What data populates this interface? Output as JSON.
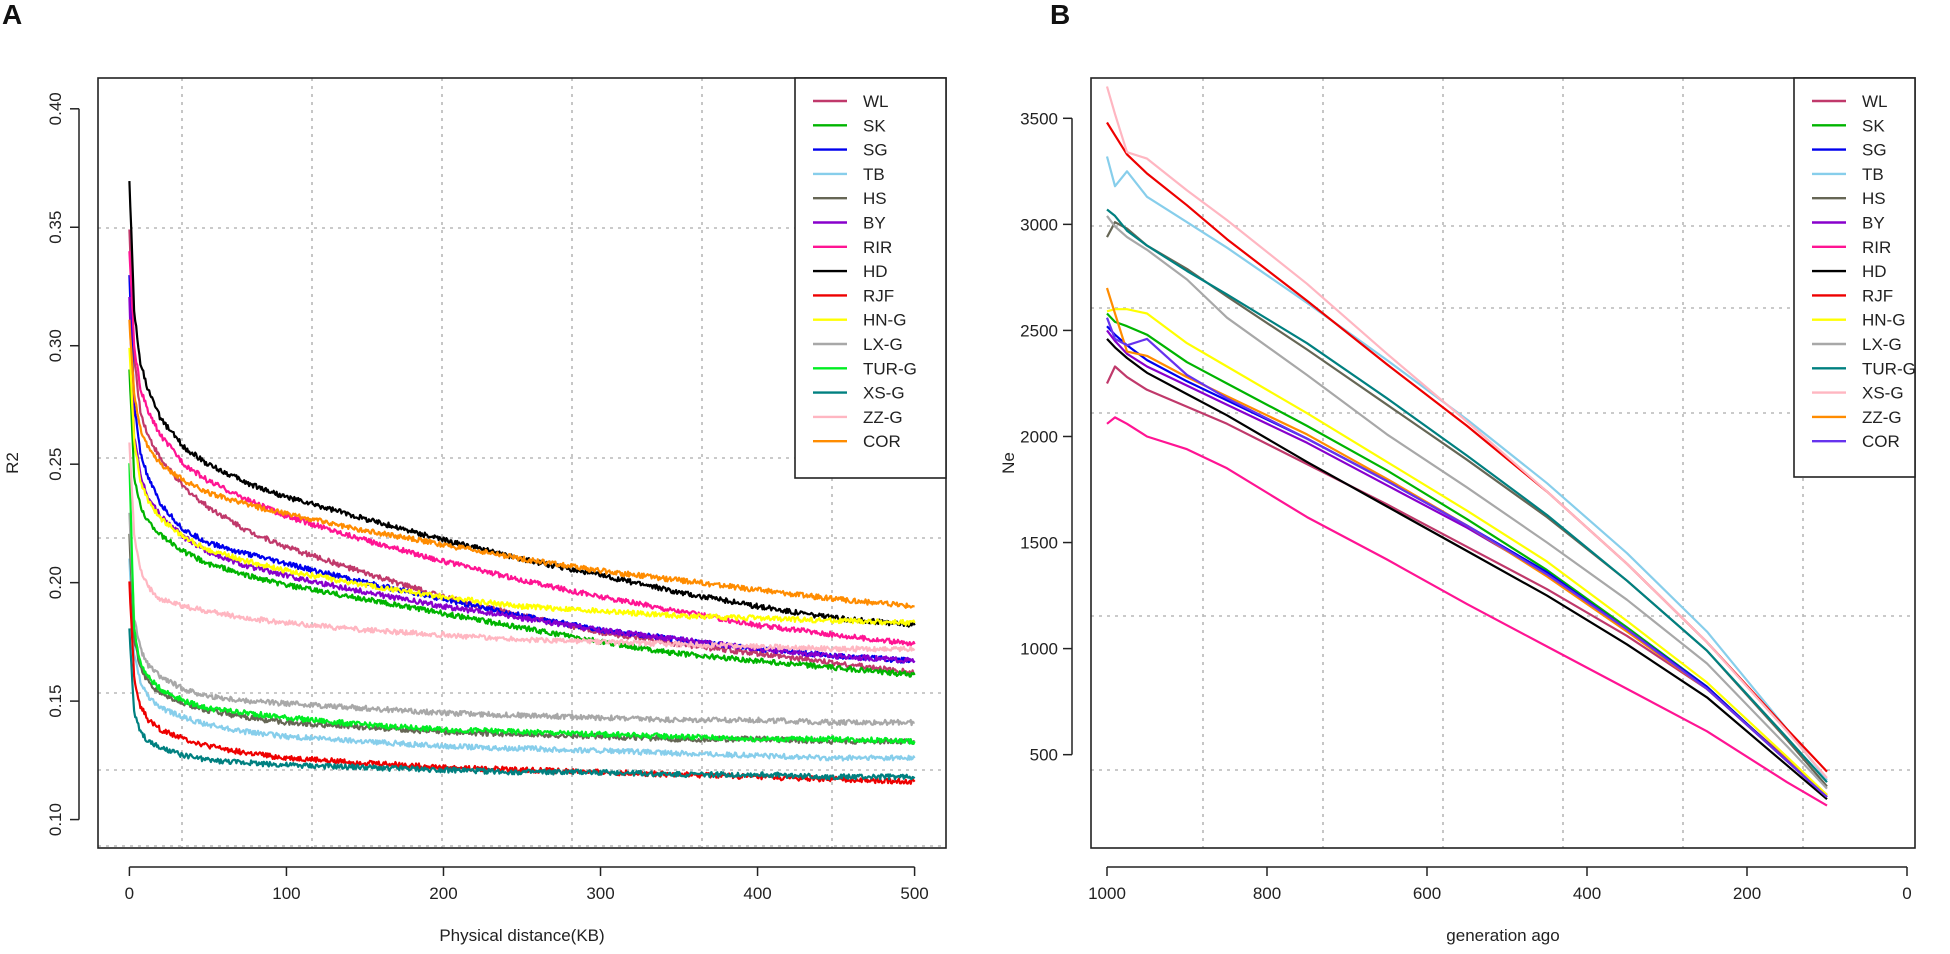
{
  "panels": [
    "A",
    "B"
  ],
  "colors": {
    "WL": "#c0396b",
    "SK": "#00b400",
    "SG": "#0000ee",
    "TB": "#87ceeb",
    "HS": "#666655",
    "BY": "#8800cc",
    "RIR": "#ff1493",
    "HD": "#000000",
    "RJF": "#ee0000",
    "HN-G": "#ffff00",
    "LX-G": "#a8a8a8",
    "TUR-G": "#00ee22",
    "XS-G": "#008080",
    "ZZ-G": "#ffb6c1",
    "COR": "#ff8c00"
  },
  "colorsB": {
    "WL": "#c0396b",
    "SK": "#00b400",
    "SG": "#0000ee",
    "TB": "#87ceeb",
    "HS": "#666655",
    "BY": "#8800cc",
    "RIR": "#ff1493",
    "HD": "#000000",
    "RJF": "#ee0000",
    "HN-G": "#ffff00",
    "LX-G": "#a8a8a8",
    "TUR-G": "#008080",
    "XS-G": "#ffb6c1",
    "ZZ-G": "#ff8c00",
    "COR": "#6633ee"
  },
  "chart_data": [
    {
      "panel": "A",
      "type": "line",
      "title": "",
      "xlabel": "Physical distance(KB)",
      "ylabel": "R2",
      "xlim": [
        -20,
        520
      ],
      "ylim": [
        0.088,
        0.413
      ],
      "xticks": [
        0,
        100,
        200,
        300,
        400,
        500
      ],
      "yticks": [
        0.1,
        0.15,
        0.2,
        0.25,
        0.3,
        0.35,
        0.4
      ],
      "ytick_labels": [
        "0.10",
        "0.15",
        "0.20",
        "0.25",
        "0.30",
        "0.35",
        "0.40"
      ],
      "grid": true,
      "legend": "top-right",
      "x": [
        0,
        3,
        7,
        12,
        20,
        35,
        50,
        75,
        100,
        150,
        200,
        250,
        300,
        350,
        400,
        450,
        500
      ],
      "series": [
        {
          "name": "WL",
          "values": [
            0.35,
            0.295,
            0.272,
            0.262,
            0.252,
            0.24,
            0.232,
            0.222,
            0.215,
            0.204,
            0.194,
            0.186,
            0.179,
            0.174,
            0.17,
            0.166,
            0.162
          ]
        },
        {
          "name": "SK",
          "values": [
            0.29,
            0.245,
            0.232,
            0.226,
            0.22,
            0.213,
            0.208,
            0.203,
            0.199,
            0.193,
            0.187,
            0.181,
            0.175,
            0.17,
            0.167,
            0.164,
            0.161
          ]
        },
        {
          "name": "SG",
          "values": [
            0.33,
            0.275,
            0.255,
            0.244,
            0.233,
            0.222,
            0.217,
            0.212,
            0.208,
            0.2,
            0.193,
            0.186,
            0.18,
            0.176,
            0.172,
            0.169,
            0.167
          ]
        },
        {
          "name": "TB",
          "values": [
            0.21,
            0.17,
            0.158,
            0.152,
            0.147,
            0.143,
            0.14,
            0.137,
            0.135,
            0.133,
            0.131,
            0.13,
            0.129,
            0.128,
            0.127,
            0.126,
            0.126
          ]
        },
        {
          "name": "HS",
          "values": [
            0.22,
            0.176,
            0.164,
            0.158,
            0.153,
            0.149,
            0.146,
            0.143,
            0.141,
            0.139,
            0.137,
            0.136,
            0.135,
            0.134,
            0.134,
            0.133,
            0.133
          ]
        },
        {
          "name": "BY",
          "values": [
            0.32,
            0.262,
            0.245,
            0.236,
            0.228,
            0.219,
            0.213,
            0.207,
            0.203,
            0.196,
            0.19,
            0.185,
            0.18,
            0.176,
            0.172,
            0.169,
            0.167
          ]
        },
        {
          "name": "RIR",
          "values": [
            0.34,
            0.3,
            0.282,
            0.272,
            0.262,
            0.25,
            0.243,
            0.235,
            0.228,
            0.218,
            0.209,
            0.201,
            0.194,
            0.188,
            0.182,
            0.178,
            0.174
          ]
        },
        {
          "name": "HD",
          "values": [
            0.37,
            0.315,
            0.293,
            0.281,
            0.269,
            0.257,
            0.25,
            0.242,
            0.236,
            0.227,
            0.218,
            0.21,
            0.203,
            0.196,
            0.19,
            0.185,
            0.182
          ]
        },
        {
          "name": "RJF",
          "values": [
            0.2,
            0.16,
            0.148,
            0.142,
            0.138,
            0.134,
            0.131,
            0.128,
            0.126,
            0.124,
            0.122,
            0.121,
            0.12,
            0.119,
            0.118,
            0.117,
            0.116
          ]
        },
        {
          "name": "HN-G",
          "values": [
            0.3,
            0.26,
            0.243,
            0.234,
            0.227,
            0.219,
            0.214,
            0.209,
            0.205,
            0.199,
            0.194,
            0.19,
            0.188,
            0.186,
            0.185,
            0.184,
            0.183
          ]
        },
        {
          "name": "LX-G",
          "values": [
            0.23,
            0.185,
            0.172,
            0.165,
            0.16,
            0.155,
            0.152,
            0.15,
            0.149,
            0.147,
            0.145,
            0.144,
            0.143,
            0.142,
            0.142,
            0.141,
            0.141
          ]
        },
        {
          "name": "TUR-G",
          "values": [
            0.25,
            0.18,
            0.166,
            0.16,
            0.155,
            0.15,
            0.147,
            0.145,
            0.143,
            0.14,
            0.138,
            0.137,
            0.136,
            0.135,
            0.134,
            0.134,
            0.133
          ]
        },
        {
          "name": "XS-G",
          "values": [
            0.18,
            0.145,
            0.137,
            0.133,
            0.13,
            0.127,
            0.125,
            0.124,
            0.123,
            0.122,
            0.121,
            0.12,
            0.12,
            0.119,
            0.119,
            0.118,
            0.118
          ]
        },
        {
          "name": "ZZ-G",
          "values": [
            0.26,
            0.22,
            0.205,
            0.198,
            0.193,
            0.19,
            0.188,
            0.185,
            0.183,
            0.18,
            0.178,
            0.176,
            0.175,
            0.174,
            0.173,
            0.172,
            0.172
          ]
        },
        {
          "name": "COR",
          "values": [
            0.31,
            0.28,
            0.265,
            0.257,
            0.25,
            0.243,
            0.238,
            0.233,
            0.229,
            0.222,
            0.216,
            0.21,
            0.205,
            0.201,
            0.197,
            0.193,
            0.19
          ]
        }
      ]
    },
    {
      "panel": "B",
      "type": "line",
      "title": "",
      "xlabel": "generation ago",
      "ylabel": "Ne",
      "xlim": [
        1020,
        -10
      ],
      "ylim": [
        60,
        3690
      ],
      "xticks": [
        1000,
        800,
        600,
        400,
        200,
        0
      ],
      "yticks": [
        500,
        1000,
        1500,
        2000,
        2500,
        3000,
        3500
      ],
      "grid": true,
      "legend": "top-right",
      "x": [
        1000,
        990,
        975,
        950,
        900,
        850,
        750,
        650,
        550,
        450,
        350,
        250,
        150,
        100
      ],
      "series": [
        {
          "name": "WL",
          "values": [
            2250,
            2330,
            2280,
            2220,
            2140,
            2060,
            1870,
            1680,
            1480,
            1280,
            1060,
            810,
            480,
            310
          ]
        },
        {
          "name": "SK",
          "values": [
            2580,
            2540,
            2520,
            2480,
            2350,
            2250,
            2050,
            1840,
            1610,
            1370,
            1100,
            820,
            470,
            300
          ]
        },
        {
          "name": "SG",
          "values": [
            2520,
            2480,
            2430,
            2360,
            2260,
            2170,
            1990,
            1790,
            1580,
            1360,
            1090,
            820,
            470,
            300
          ]
        },
        {
          "name": "TB",
          "values": [
            3320,
            3180,
            3250,
            3130,
            3010,
            2890,
            2630,
            2360,
            2080,
            1780,
            1450,
            1080,
            620,
            380
          ]
        },
        {
          "name": "HS",
          "values": [
            2940,
            3010,
            2980,
            2900,
            2790,
            2660,
            2410,
            2150,
            1890,
            1620,
            1320,
            990,
            570,
            350
          ]
        },
        {
          "name": "BY",
          "values": [
            2500,
            2450,
            2390,
            2330,
            2240,
            2150,
            1970,
            1770,
            1570,
            1350,
            1090,
            810,
            470,
            300
          ]
        },
        {
          "name": "RIR",
          "values": [
            2060,
            2090,
            2060,
            2000,
            1940,
            1850,
            1620,
            1420,
            1210,
            1010,
            810,
            610,
            370,
            260
          ]
        },
        {
          "name": "HD",
          "values": [
            2460,
            2420,
            2370,
            2300,
            2200,
            2100,
            1880,
            1670,
            1460,
            1250,
            1020,
            770,
            450,
            290
          ]
        },
        {
          "name": "RJF",
          "values": [
            3480,
            3420,
            3330,
            3240,
            3090,
            2930,
            2640,
            2340,
            2050,
            1740,
            1400,
            1030,
            620,
            420
          ]
        },
        {
          "name": "HN-G",
          "values": [
            2590,
            2600,
            2600,
            2580,
            2440,
            2330,
            2110,
            1880,
            1650,
            1410,
            1130,
            840,
            490,
            310
          ]
        },
        {
          "name": "LX-G",
          "values": [
            3040,
            2990,
            2940,
            2880,
            2740,
            2560,
            2290,
            2010,
            1760,
            1500,
            1230,
            930,
            540,
            340
          ]
        },
        {
          "name": "TUR-G",
          "values": [
            3070,
            3040,
            2970,
            2900,
            2780,
            2670,
            2440,
            2180,
            1910,
            1630,
            1320,
            990,
            580,
            370
          ]
        },
        {
          "name": "XS-G",
          "values": [
            3650,
            3520,
            3340,
            3310,
            3160,
            3020,
            2720,
            2390,
            2070,
            1740,
            1400,
            1030,
            610,
            390
          ]
        },
        {
          "name": "ZZ-G",
          "values": [
            2700,
            2580,
            2400,
            2380,
            2280,
            2190,
            2010,
            1800,
            1580,
            1340,
            1080,
            810,
            470,
            300
          ]
        },
        {
          "name": "COR",
          "values": [
            2560,
            2460,
            2430,
            2460,
            2290,
            2180,
            1990,
            1790,
            1580,
            1350,
            1090,
            810,
            470,
            300
          ]
        }
      ]
    }
  ]
}
